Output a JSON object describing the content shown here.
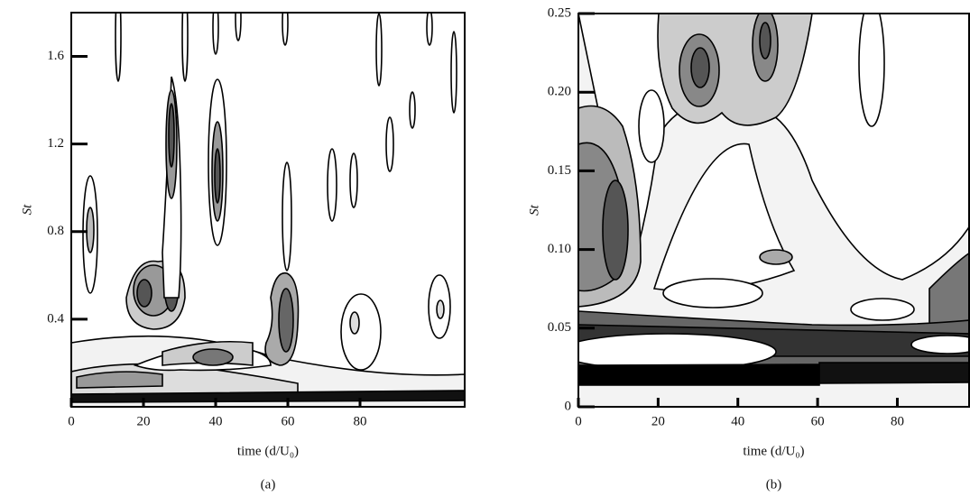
{
  "chart_data": [
    {
      "type": "contour",
      "caption": "(a)",
      "x_label": "time (d/U₀)",
      "y_label": "St",
      "xlim": [
        0,
        109
      ],
      "ylim": [
        0,
        1.8
      ],
      "xticks": [
        0,
        20,
        40,
        60,
        80
      ],
      "yticks": [
        0.4,
        0.8,
        1.2,
        1.6
      ]
    },
    {
      "type": "contour",
      "caption": "(b)",
      "x_label": "time (d/U₀)",
      "y_label": "St",
      "xlim": [
        0,
        98
      ],
      "ylim": [
        0,
        0.25
      ],
      "xticks": [
        0,
        20,
        40,
        60,
        80
      ],
      "yticks": [
        0,
        0.05,
        {
          "value": 0.1,
          "label": "0.10"
        },
        0.15,
        {
          "value": 0.2,
          "label": "0.20"
        },
        0.25
      ]
    }
  ]
}
